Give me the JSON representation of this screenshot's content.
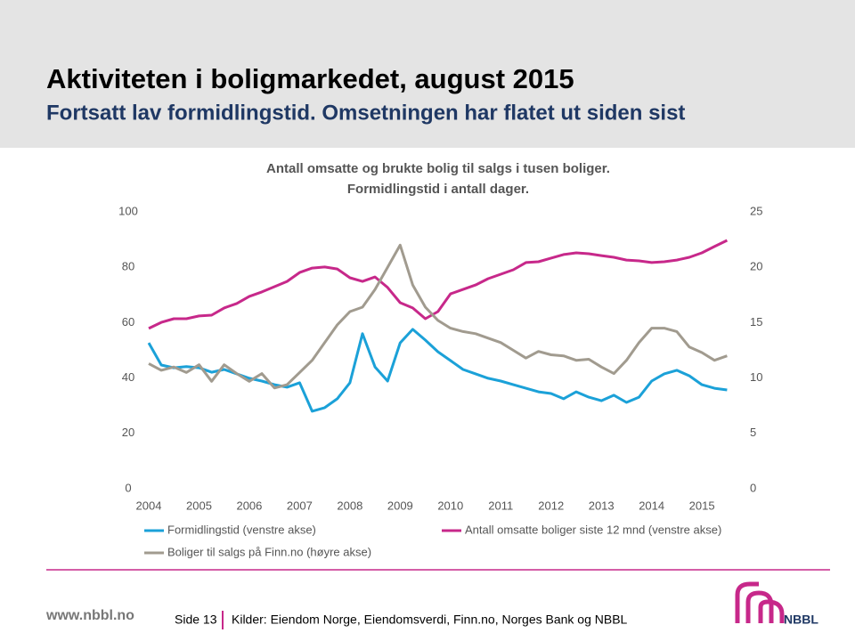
{
  "header": {
    "title": "Aktiviteten i boligmarkedet, august 2015",
    "subtitle": "Fortsatt lav formidlingstid. Omsetningen har flatet ut siden sist"
  },
  "chart_data": {
    "type": "line",
    "title": "Antall omsatte og brukte bolig til salgs i tusen boliger.",
    "subtitle": "Formidlingstid i antall dager.",
    "x": [
      2004,
      2004.25,
      2004.5,
      2004.75,
      2005,
      2005.25,
      2005.5,
      2005.75,
      2006,
      2006.25,
      2006.5,
      2006.75,
      2007,
      2007.25,
      2007.5,
      2007.75,
      2008,
      2008.25,
      2008.5,
      2008.75,
      2009,
      2009.25,
      2009.5,
      2009.75,
      2010,
      2010.25,
      2010.5,
      2010.75,
      2011,
      2011.25,
      2011.5,
      2011.75,
      2012,
      2012.25,
      2012.5,
      2012.75,
      2013,
      2013.25,
      2013.5,
      2013.75,
      2014,
      2014.25,
      2014.5,
      2014.75,
      2015,
      2015.25,
      2015.5
    ],
    "xlim": [
      2004,
      2015.6
    ],
    "xticks": [
      2004,
      2005,
      2006,
      2007,
      2008,
      2009,
      2010,
      2011,
      2012,
      2013,
      2014,
      2015
    ],
    "ylim": [
      0,
      100
    ],
    "yticks": [
      0,
      20,
      40,
      60,
      80,
      100
    ],
    "y2lim": [
      0,
      25
    ],
    "y2ticks": [
      0,
      5,
      10,
      15,
      20,
      25
    ],
    "legend": "bottom",
    "grid": false,
    "series": [
      {
        "name": "Formidlingstid (venstre akse)",
        "color": "#1ba1d8",
        "values": [
          52.7,
          44.7,
          43.7,
          44.1,
          43.7,
          42.1,
          43.1,
          41.5,
          39.9,
          38.9,
          37.6,
          36.7,
          38.3,
          28.0,
          29.3,
          32.5,
          38.3,
          56.0,
          44.0,
          38.9,
          52.7,
          57.6,
          53.7,
          49.5,
          46.3,
          43.1,
          41.5,
          39.9,
          38.9,
          37.6,
          36.3,
          35.0,
          34.4,
          32.5,
          35.0,
          33.1,
          31.8,
          33.8,
          31.2,
          33.1,
          38.9,
          41.5,
          42.8,
          40.8,
          37.6,
          36.3,
          35.7
        ]
      },
      {
        "name": "Antall omsatte boliger siste 12 mnd (venstre akse)",
        "color": "#c7288a",
        "values": [
          57.9,
          60.1,
          61.4,
          61.4,
          62.4,
          62.7,
          65.3,
          66.9,
          69.5,
          71.1,
          73.0,
          74.9,
          78.1,
          79.7,
          80.1,
          79.4,
          76.2,
          74.9,
          76.5,
          72.7,
          67.2,
          65.3,
          61.4,
          64.0,
          70.4,
          72.0,
          73.6,
          75.9,
          77.5,
          79.1,
          81.7,
          82.0,
          83.3,
          84.6,
          85.2,
          84.9,
          84.2,
          83.6,
          82.6,
          82.3,
          81.7,
          82.0,
          82.6,
          83.6,
          85.2,
          87.5,
          89.7
        ]
      },
      {
        "name": "Boliger til salgs på Finn.no (høyre akse)",
        "color": "#a19b8f",
        "axis": "y2",
        "values": [
          11.3,
          10.7,
          11.0,
          10.5,
          11.2,
          9.7,
          11.2,
          10.4,
          9.7,
          10.4,
          9.1,
          9.4,
          10.5,
          11.6,
          13.2,
          14.8,
          16.0,
          16.4,
          18.0,
          20.0,
          22.0,
          18.4,
          16.4,
          15.2,
          14.5,
          14.2,
          14.0,
          13.6,
          13.2,
          12.5,
          11.8,
          12.4,
          12.1,
          12.0,
          11.6,
          11.7,
          11.0,
          10.4,
          11.6,
          13.2,
          14.5,
          14.5,
          14.2,
          12.8,
          12.3,
          11.6,
          12.0
        ]
      }
    ]
  },
  "footer": {
    "website": "www.nbbl.no",
    "page": "Side 13",
    "sources": "Kilder: Eiendom Norge, Eiendomsverdi, Finn.no, Norges Bank og NBBL",
    "logo": "NBBL"
  }
}
